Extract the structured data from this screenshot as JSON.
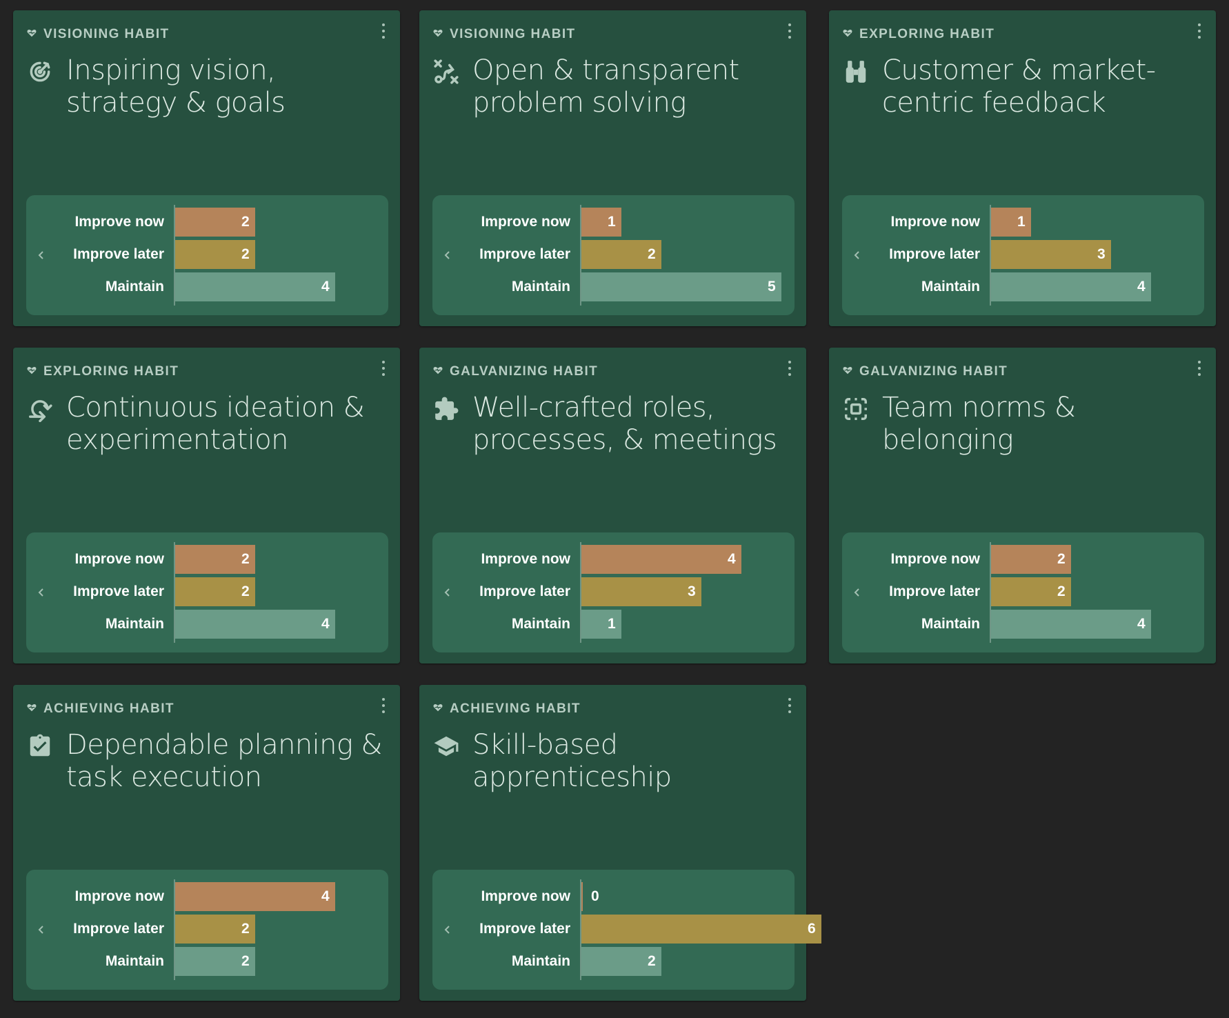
{
  "colors": {
    "improve_now": "#b5845a",
    "improve_later": "#a89146",
    "maintain": "#6b9c88"
  },
  "max_scale": 7,
  "habits": [
    {
      "category": "VISIONING HABIT",
      "title": "Inspiring vision, strategy & goals",
      "icon": "target-icon",
      "rows": [
        {
          "label": "Improve now",
          "value": 2,
          "key": "improve_now"
        },
        {
          "label": "Improve later",
          "value": 2,
          "key": "improve_later"
        },
        {
          "label": "Maintain",
          "value": 4,
          "key": "maintain"
        }
      ]
    },
    {
      "category": "VISIONING HABIT",
      "title": "Open & transparent problem solving",
      "icon": "route-icon",
      "rows": [
        {
          "label": "Improve now",
          "value": 1,
          "key": "improve_now"
        },
        {
          "label": "Improve later",
          "value": 2,
          "key": "improve_later"
        },
        {
          "label": "Maintain",
          "value": 5,
          "key": "maintain"
        }
      ]
    },
    {
      "category": "EXPLORING HABIT",
      "title": "Customer & market-centric feedback",
      "icon": "binoculars-icon",
      "rows": [
        {
          "label": "Improve now",
          "value": 1,
          "key": "improve_now"
        },
        {
          "label": "Improve later",
          "value": 3,
          "key": "improve_later"
        },
        {
          "label": "Maintain",
          "value": 4,
          "key": "maintain"
        }
      ]
    },
    {
      "category": "EXPLORING HABIT",
      "title": "Continuous ideation & experimentation",
      "icon": "cycle-arrow-icon",
      "rows": [
        {
          "label": "Improve now",
          "value": 2,
          "key": "improve_now"
        },
        {
          "label": "Improve later",
          "value": 2,
          "key": "improve_later"
        },
        {
          "label": "Maintain",
          "value": 4,
          "key": "maintain"
        }
      ]
    },
    {
      "category": "GALVANIZING HABIT",
      "title": "Well-crafted roles, processes, & meetings",
      "icon": "puzzle-icon",
      "rows": [
        {
          "label": "Improve now",
          "value": 4,
          "key": "improve_now"
        },
        {
          "label": "Improve later",
          "value": 3,
          "key": "improve_later"
        },
        {
          "label": "Maintain",
          "value": 1,
          "key": "maintain"
        }
      ]
    },
    {
      "category": "GALVANIZING HABIT",
      "title": "Team norms & belonging",
      "icon": "select-frame-icon",
      "rows": [
        {
          "label": "Improve now",
          "value": 2,
          "key": "improve_now"
        },
        {
          "label": "Improve later",
          "value": 2,
          "key": "improve_later"
        },
        {
          "label": "Maintain",
          "value": 4,
          "key": "maintain"
        }
      ]
    },
    {
      "category": "ACHIEVING HABIT",
      "title": "Dependable planning & task execution",
      "icon": "clipboard-check-icon",
      "rows": [
        {
          "label": "Improve now",
          "value": 4,
          "key": "improve_now"
        },
        {
          "label": "Improve later",
          "value": 2,
          "key": "improve_later"
        },
        {
          "label": "Maintain",
          "value": 2,
          "key": "maintain"
        }
      ]
    },
    {
      "category": "ACHIEVING HABIT",
      "title": "Skill-based apprenticeship",
      "icon": "graduation-cap-icon",
      "rows": [
        {
          "label": "Improve now",
          "value": 0,
          "key": "improve_now"
        },
        {
          "label": "Improve later",
          "value": 6,
          "key": "improve_later"
        },
        {
          "label": "Maintain",
          "value": 2,
          "key": "maintain"
        }
      ]
    }
  ]
}
